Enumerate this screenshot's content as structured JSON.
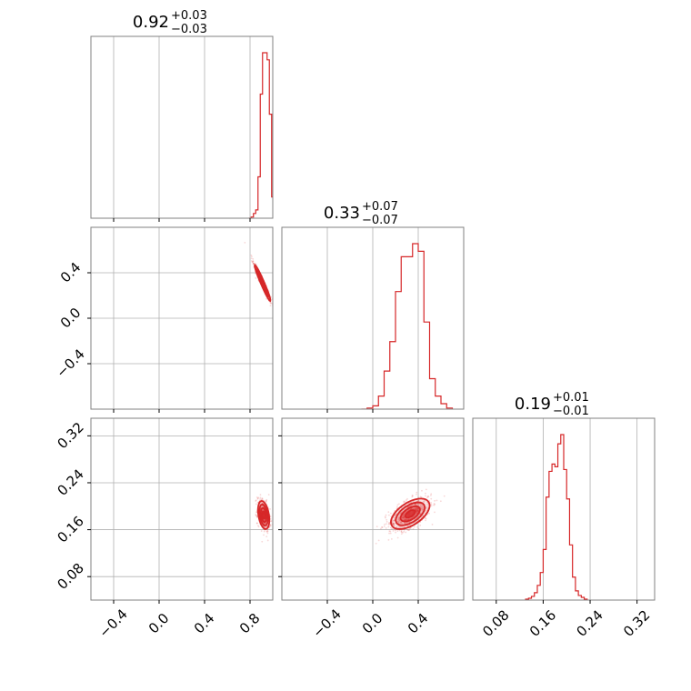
{
  "chart_data": {
    "type": "corner",
    "colors": {
      "main": "#d62728",
      "grid": "#b0b0b0",
      "frame": "#808080"
    },
    "grid": true,
    "parameters": [
      {
        "range": [
          -0.6,
          1.0
        ],
        "ticks": [
          -0.4,
          0.0,
          0.4,
          0.8
        ],
        "tick_labels": [
          "−0.4",
          "0.0",
          "0.4",
          "0.8"
        ]
      },
      {
        "range": [
          -0.8,
          0.8
        ],
        "ticks": [
          -0.4,
          0.0,
          0.4
        ],
        "tick_labels": [
          "−0.4",
          "0.0",
          "0.4"
        ]
      },
      {
        "range": [
          0.04,
          0.35
        ],
        "ticks": [
          0.08,
          0.16,
          0.24,
          0.32
        ],
        "tick_labels": [
          "0.08",
          "0.16",
          "0.24",
          "0.32"
        ]
      }
    ],
    "titles": [
      {
        "value": "0.92",
        "plus": "+0.03",
        "minus": "−0.03"
      },
      {
        "value": "0.33",
        "plus": "+0.07",
        "minus": "−0.07"
      },
      {
        "value": "0.19",
        "plus": "+0.01",
        "minus": "−0.01"
      }
    ],
    "marginals": [
      {
        "param": 0,
        "bins": [
          0.79,
          0.81,
          0.83,
          0.85,
          0.87,
          0.89,
          0.91,
          0.93,
          0.95,
          0.97,
          0.99,
          1.01
        ],
        "counts": [
          0,
          1,
          4,
          7,
          35,
          105,
          140,
          140,
          134,
          88,
          18,
          0
        ]
      },
      {
        "param": 1,
        "bins": [
          -0.1,
          -0.05,
          0.0,
          0.05,
          0.1,
          0.15,
          0.2,
          0.25,
          0.3,
          0.35,
          0.4,
          0.45,
          0.5,
          0.55,
          0.6,
          0.65,
          0.7
        ],
        "counts": [
          0,
          1,
          3,
          12,
          35,
          62,
          108,
          140,
          140,
          152,
          145,
          80,
          28,
          12,
          5,
          1
        ]
      },
      {
        "param": 2,
        "bins": [
          0.13,
          0.135,
          0.14,
          0.145,
          0.15,
          0.155,
          0.16,
          0.165,
          0.17,
          0.175,
          0.18,
          0.185,
          0.19,
          0.195,
          0.2,
          0.205,
          0.21,
          0.215,
          0.22,
          0.225,
          0.23,
          0.235
        ],
        "counts": [
          1,
          2,
          4,
          8,
          16,
          30,
          55,
          112,
          140,
          148,
          145,
          170,
          180,
          142,
          110,
          60,
          25,
          10,
          5,
          3,
          1
        ]
      }
    ],
    "joint": [
      {
        "row": 1,
        "col": 0,
        "center": [
          0.91,
          0.31
        ],
        "sx": 0.035,
        "sy": 0.08,
        "rho": -0.97,
        "n_points": 450
      },
      {
        "row": 2,
        "col": 0,
        "center": [
          0.92,
          0.185
        ],
        "sx": 0.025,
        "sy": 0.012,
        "rho": -0.35,
        "n_points": 450
      },
      {
        "row": 2,
        "col": 1,
        "center": [
          0.33,
          0.187
        ],
        "sx": 0.085,
        "sy": 0.013,
        "rho": 0.55,
        "n_points": 700
      }
    ]
  }
}
